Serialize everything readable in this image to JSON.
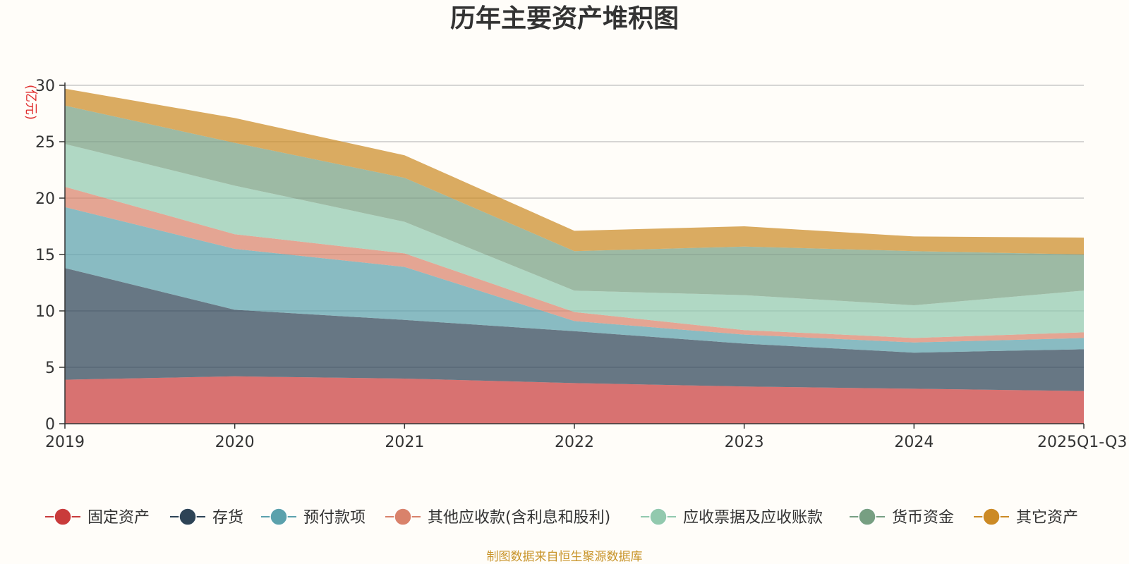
{
  "chart_data": {
    "type": "area",
    "stacked": true,
    "title": "历年主要资产堆积图",
    "unit_label": "(亿元)",
    "x": [
      "2019",
      "2020",
      "2021",
      "2022",
      "2023",
      "2024",
      "2025Q1-Q3"
    ],
    "ylim": [
      0,
      30
    ],
    "yticks": [
      0,
      5,
      10,
      15,
      20,
      25,
      30
    ],
    "grid": true,
    "legend_position": "bottom",
    "series": [
      {
        "name": "固定资产",
        "color": "#c93b3b",
        "values": [
          3.9,
          4.2,
          4.0,
          3.6,
          3.3,
          3.1,
          2.9
        ]
      },
      {
        "name": "存货",
        "color": "#2d4356",
        "values": [
          9.9,
          5.9,
          5.2,
          4.6,
          3.8,
          3.2,
          3.7
        ]
      },
      {
        "name": "预付款项",
        "color": "#5ba1ac",
        "values": [
          5.4,
          5.4,
          4.7,
          0.9,
          0.8,
          0.9,
          1.0
        ]
      },
      {
        "name": "其他应收款(含利息和股利)",
        "color": "#d9826b",
        "values": [
          1.8,
          1.3,
          1.2,
          0.8,
          0.4,
          0.4,
          0.5
        ]
      },
      {
        "name": "应收票据及应收账款",
        "color": "#92c9ae",
        "values": [
          3.8,
          4.3,
          2.8,
          1.9,
          3.1,
          2.9,
          3.7
        ]
      },
      {
        "name": "货币资金",
        "color": "#779f82",
        "values": [
          3.4,
          3.8,
          3.9,
          3.5,
          4.3,
          4.8,
          3.2
        ]
      },
      {
        "name": "其它资产",
        "color": "#cc8a25",
        "values": [
          1.5,
          2.2,
          2.0,
          1.8,
          1.8,
          1.3,
          1.5
        ]
      }
    ],
    "source_note": "制图数据来自恒生聚源数据库"
  }
}
